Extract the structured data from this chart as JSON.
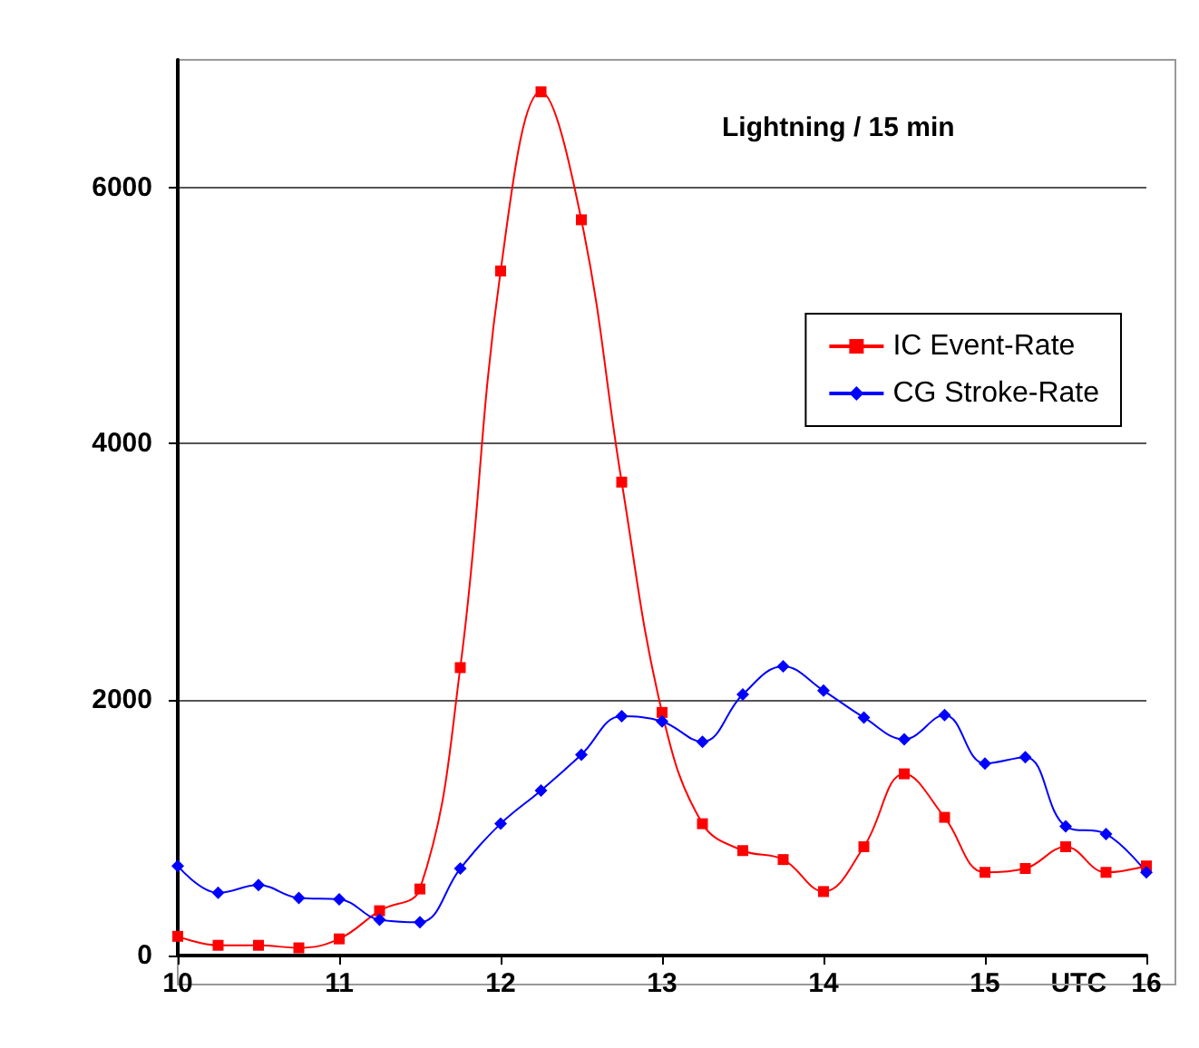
{
  "chart_data": {
    "type": "line",
    "title": "Lightning / 15 min",
    "xlabel": "UTC",
    "x": [
      10,
      10.25,
      10.5,
      10.75,
      11,
      11.25,
      11.5,
      11.75,
      12,
      12.25,
      12.5,
      12.75,
      13,
      13.25,
      13.5,
      13.75,
      14,
      14.25,
      14.5,
      14.75,
      15,
      15.25,
      15.5,
      15.75,
      16
    ],
    "series": [
      {
        "name": "IC Event-Rate",
        "color": "#ff0000",
        "marker": "square",
        "values": [
          150,
          80,
          80,
          60,
          130,
          350,
          520,
          2250,
          5350,
          6750,
          5750,
          3700,
          1900,
          1030,
          820,
          750,
          500,
          850,
          1420,
          1080,
          650,
          680,
          850,
          650,
          700
        ]
      },
      {
        "name": "CG Stroke-Rate",
        "color": "#0000ff",
        "marker": "diamond",
        "values": [
          700,
          490,
          550,
          450,
          440,
          280,
          260,
          680,
          1030,
          1290,
          1570,
          1870,
          1830,
          1670,
          2040,
          2260,
          2070,
          1860,
          1690,
          1880,
          1500,
          1550,
          1010,
          950,
          650
        ]
      }
    ],
    "xlim": [
      10,
      16
    ],
    "xticks": [
      10,
      11,
      12,
      13,
      14,
      15,
      16
    ],
    "ylim": [
      0,
      7000
    ],
    "yticks": [
      0,
      2000,
      4000,
      6000
    ],
    "grid": "y",
    "legend": "right"
  }
}
